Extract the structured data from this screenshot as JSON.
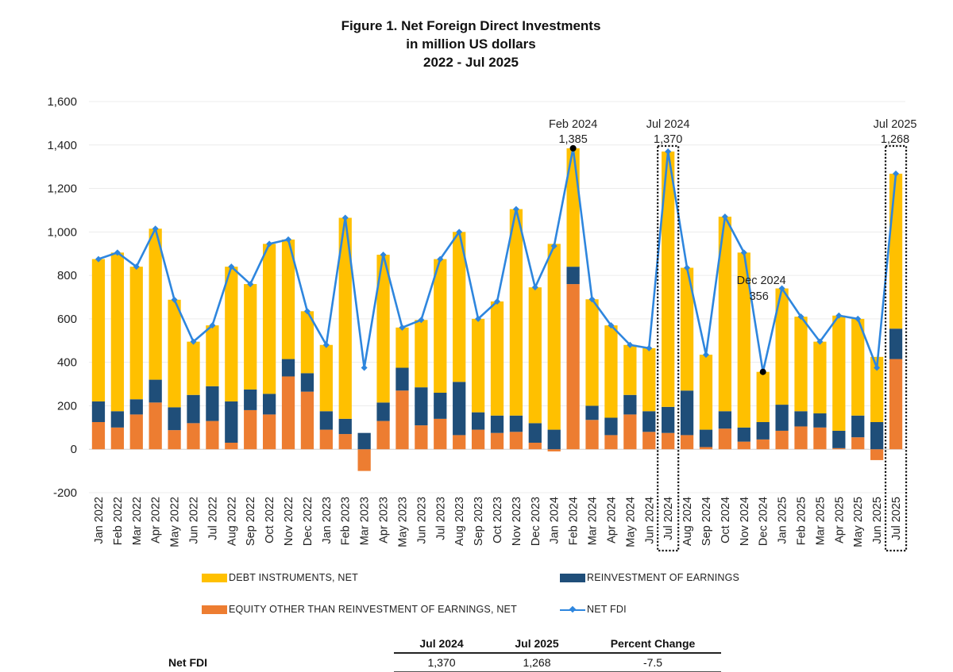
{
  "title": {
    "line1": "Figure 1. Net Foreign Direct Investments",
    "line2": "in million US dollars",
    "line3": "2022 - Jul 2025"
  },
  "colors": {
    "debt": "#FFC000",
    "reinvestment": "#1F4E79",
    "equity": "#ED7D31",
    "net_fdi": "#2E86DE"
  },
  "chart_data": {
    "type": "bar",
    "stacked": true,
    "title": "Figure 1. Net Foreign Direct Investments in million US dollars 2022 - Jul 2025",
    "ylim": [
      -200,
      1600
    ],
    "yticks": [
      -200,
      0,
      200,
      400,
      600,
      800,
      1000,
      1200,
      1400,
      1600
    ],
    "ytick_labels": [
      "-200",
      "0",
      "200",
      "400",
      "600",
      "800",
      "1,000",
      "1,200",
      "1,400",
      "1,600"
    ],
    "grid": true,
    "categories": [
      "Jan 2022",
      "Feb 2022",
      "Mar 2022",
      "Apr 2022",
      "May 2022",
      "Jun 2022",
      "Jul 2022",
      "Aug 2022",
      "Sep 2022",
      "Oct 2022",
      "Nov 2022",
      "Dec 2022",
      "Jan 2023",
      "Feb 2023",
      "Mar 2023",
      "Apr 2023",
      "May 2023",
      "Jun 2023",
      "Jul 2023",
      "Aug 2023",
      "Sep 2023",
      "Oct 2023",
      "Nov 2023",
      "Dec 2023",
      "Jan 2024",
      "Feb 2024",
      "Mar 2024",
      "Apr 2024",
      "May 2024",
      "Jun 2024",
      "Jul 2024",
      "Aug 2024",
      "Sep 2024",
      "Oct 2024",
      "Nov 2024",
      "Dec 2024",
      "Jan 2025",
      "Feb 2025",
      "Mar 2025",
      "Apr 2025",
      "May 2025",
      "Jun 2025",
      "Jul 2025"
    ],
    "series": [
      {
        "name": "EQUITY OTHER THAN REINVESTMENT OF EARNINGS, NET",
        "key": "equity",
        "values": [
          125,
          100,
          160,
          215,
          88,
          120,
          130,
          30,
          180,
          160,
          335,
          265,
          90,
          70,
          -100,
          130,
          270,
          110,
          140,
          65,
          90,
          75,
          80,
          30,
          -10,
          760,
          135,
          65,
          160,
          80,
          75,
          65,
          10,
          95,
          35,
          45,
          85,
          105,
          100,
          5,
          55,
          -50,
          415
        ]
      },
      {
        "name": "REINVESTMENT OF EARNINGS",
        "key": "reinvestment",
        "values": [
          95,
          75,
          70,
          105,
          105,
          130,
          160,
          190,
          95,
          95,
          80,
          85,
          85,
          70,
          75,
          85,
          105,
          175,
          120,
          245,
          80,
          80,
          75,
          90,
          90,
          80,
          65,
          80,
          90,
          95,
          120,
          205,
          80,
          80,
          65,
          80,
          120,
          70,
          65,
          80,
          100,
          125,
          140
        ]
      },
      {
        "name": "DEBT INSTRUMENTS, NET",
        "key": "debt",
        "values": [
          655,
          730,
          610,
          695,
          495,
          245,
          280,
          620,
          485,
          690,
          550,
          285,
          305,
          925,
          0,
          680,
          185,
          310,
          615,
          690,
          430,
          525,
          950,
          625,
          855,
          545,
          490,
          425,
          230,
          290,
          1175,
          565,
          345,
          895,
          805,
          231,
          535,
          435,
          330,
          530,
          445,
          300,
          713
        ]
      }
    ],
    "net_fdi": {
      "name": "NET FDI",
      "key": "net_fdi",
      "values": [
        875,
        905,
        840,
        1015,
        688,
        495,
        570,
        840,
        760,
        945,
        965,
        635,
        480,
        1065,
        375,
        895,
        560,
        595,
        875,
        1000,
        600,
        680,
        1105,
        745,
        935,
        1385,
        690,
        570,
        480,
        465,
        1370,
        835,
        435,
        1070,
        905,
        356,
        740,
        610,
        495,
        615,
        600,
        375,
        1268
      ]
    },
    "annotations": [
      {
        "label_month": "Feb 2024",
        "label_value": "1,385",
        "index": 25
      },
      {
        "label_month": "Jul 2024",
        "label_value": "1,370",
        "index": 30,
        "boxed": true
      },
      {
        "label_month": "Dec 2024",
        "label_value": "356",
        "index": 35
      },
      {
        "label_month": "Jul 2025",
        "label_value": "1,268",
        "index": 42,
        "boxed": true
      }
    ]
  },
  "legend": {
    "debt": "DEBT INSTRUMENTS, NET",
    "reinvestment": "REINVESTMENT OF EARNINGS",
    "equity": "EQUITY OTHER THAN REINVESTMENT OF EARNINGS, NET",
    "net_fdi": "NET FDI"
  },
  "summary_table": {
    "col1": "Jul 2024",
    "col2": "Jul 2025",
    "col3": "Percent Change",
    "row_label": "Net FDI",
    "v1": "1,370",
    "v2": "1,268",
    "v3": "-7.5"
  }
}
